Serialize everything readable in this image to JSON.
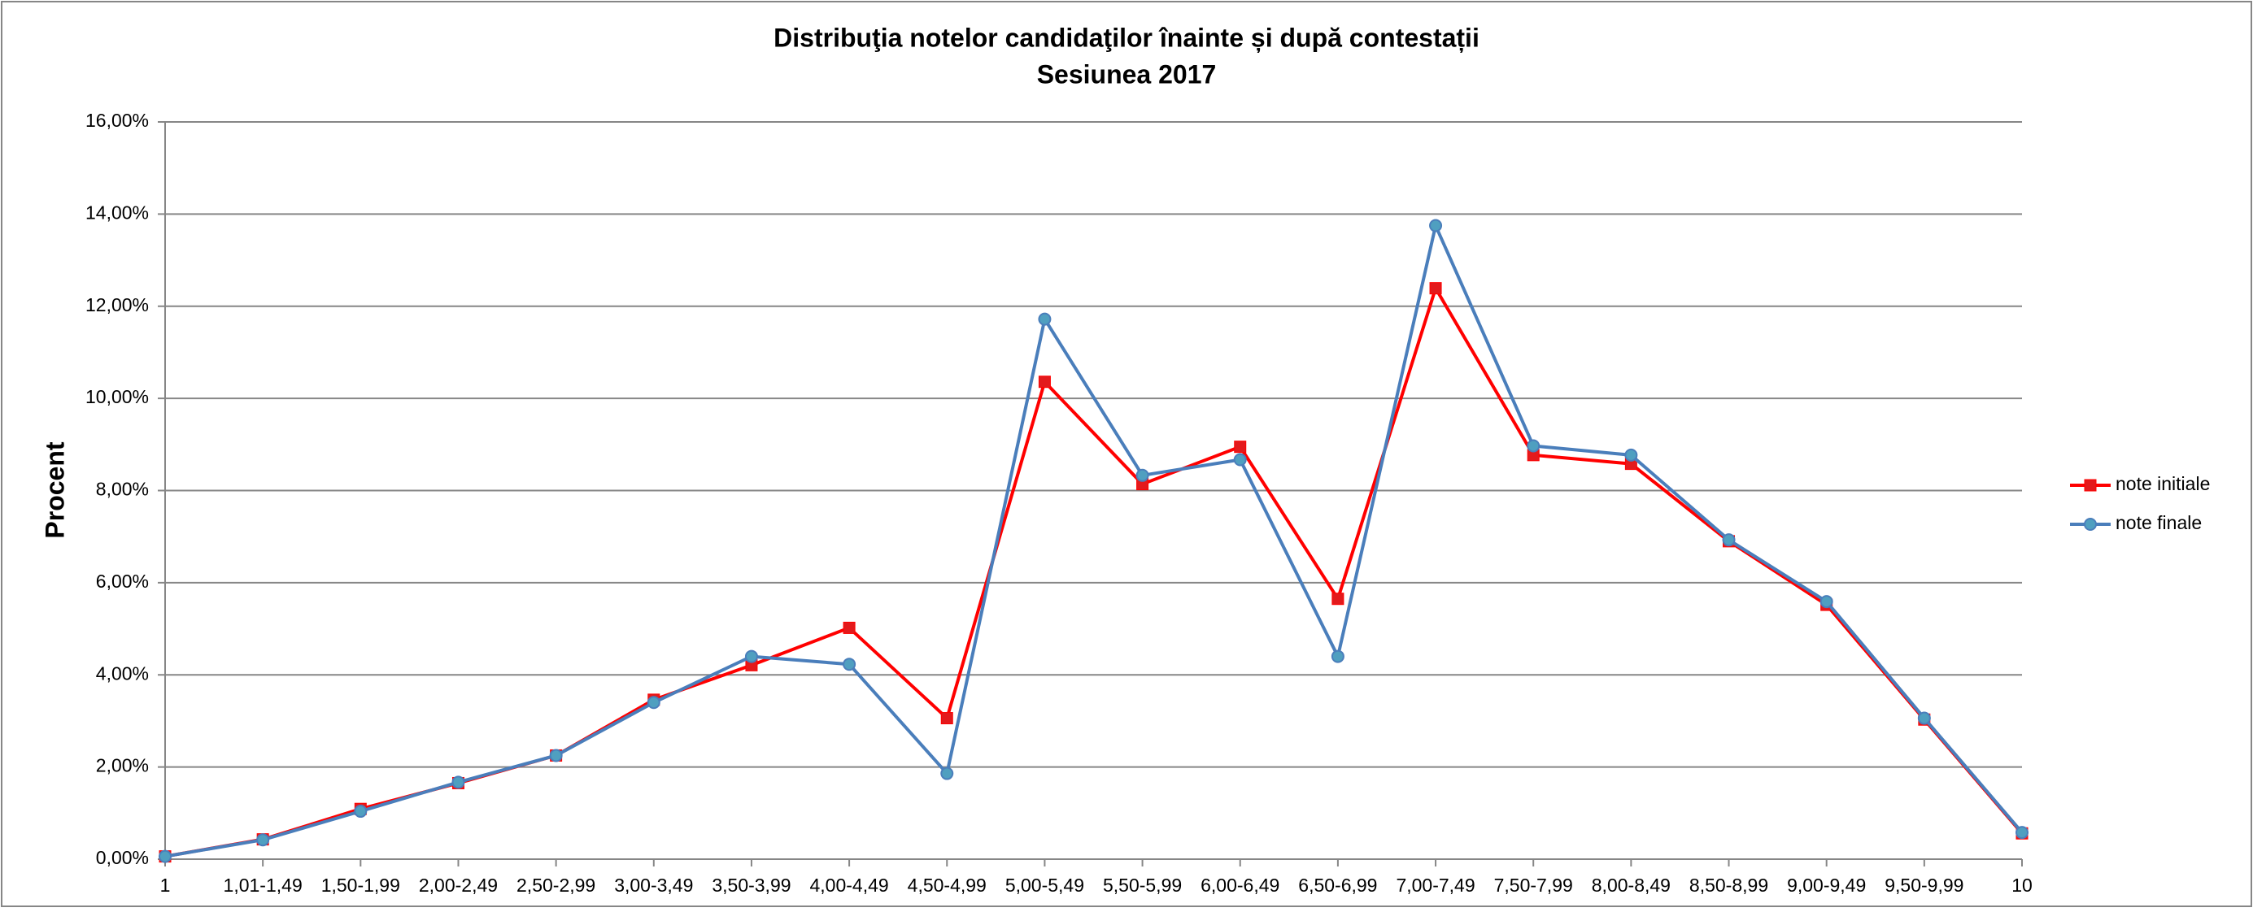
{
  "chart_data": {
    "type": "line",
    "title": "Distribuţia notelor candidaţilor înainte și după contestații",
    "subtitle": "Sesiunea 2017",
    "y_label": "Procent",
    "categories": [
      "1",
      "1,01-1,49",
      "1,50-1,99",
      "2,00-2,49",
      "2,50-2,99",
      "3,00-3,49",
      "3,50-3,99",
      "4,00-4,49",
      "4,50-4,99",
      "5,00-5,49",
      "5,50-5,99",
      "6,00-6,49",
      "6,50-6,99",
      "7,00-7,49",
      "7,50-7,99",
      "8,00-8,49",
      "8,50-8,99",
      "9,00-9,49",
      "9,50-9,99",
      "10"
    ],
    "series": [
      {
        "name": "note initiale",
        "color": "#ff0000",
        "marker": "square",
        "marker_color": "#e31a1c",
        "values": [
          0.06,
          0.43,
          1.09,
          1.65,
          2.25,
          3.46,
          4.21,
          5.02,
          3.06,
          10.36,
          8.14,
          8.95,
          5.65,
          12.39,
          8.77,
          8.58,
          6.9,
          5.52,
          3.03,
          0.56
        ]
      },
      {
        "name": "note finale",
        "color": "#4a7ebb",
        "marker": "circle",
        "marker_color": "#4f9fc0",
        "values": [
          0.06,
          0.42,
          1.04,
          1.67,
          2.25,
          3.4,
          4.4,
          4.23,
          1.86,
          11.72,
          8.33,
          8.67,
          4.4,
          13.75,
          8.97,
          8.77,
          6.93,
          5.59,
          3.06,
          0.58
        ]
      }
    ],
    "ylim": [
      0,
      16
    ],
    "yticks": [
      {
        "value": 0,
        "label": "0,00%"
      },
      {
        "value": 2,
        "label": "2,00%"
      },
      {
        "value": 4,
        "label": "4,00%"
      },
      {
        "value": 6,
        "label": "6,00%"
      },
      {
        "value": 8,
        "label": "8,00%"
      },
      {
        "value": 10,
        "label": "10,00%"
      },
      {
        "value": 12,
        "label": "12,00%"
      },
      {
        "value": 14,
        "label": "14,00%"
      },
      {
        "value": 16,
        "label": "16,00%"
      }
    ],
    "grid": true,
    "legend": "right"
  }
}
